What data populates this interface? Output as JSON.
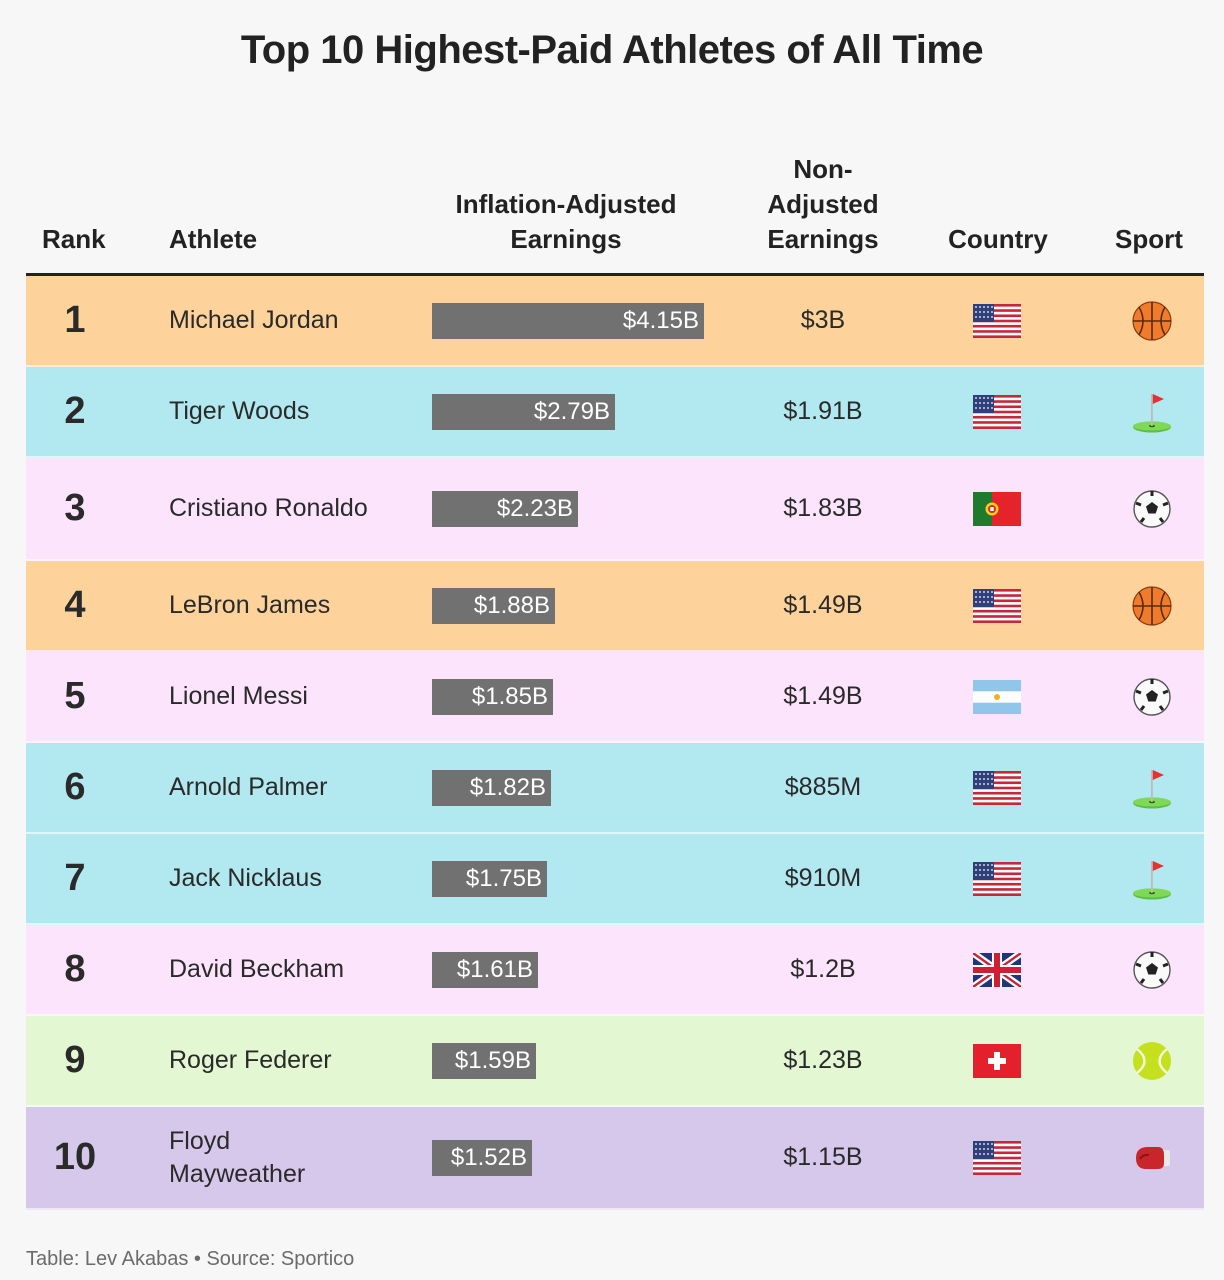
{
  "title": "Top 10 Highest-Paid Athletes of All Time",
  "headers": {
    "rank": "Rank",
    "athlete": "Athlete",
    "inflation_line1": "Inflation-Adjusted",
    "inflation_line2": "Earnings",
    "nonadj_line1": "Non-",
    "nonadj_line2": "Adjusted",
    "nonadj_line3": "Earnings",
    "country": "Country",
    "sport": "Sport"
  },
  "colors": {
    "basketball": "#fdd39b",
    "golf": "#b2e8ef",
    "soccer": "#fde4fd",
    "tennis": "#e2f7d2",
    "boxing": "#d6c8ea",
    "bar": "#717171"
  },
  "chart_data": {
    "type": "table",
    "max_value": 4.15,
    "rows": [
      {
        "rank": "1",
        "athlete": "Michael Jordan",
        "inflation_label": "$4.15B",
        "inflation_value": 4.15,
        "nonadj": "$3B",
        "country": "us-flag-icon",
        "sport": "basketball-icon",
        "sport_key": "basketball"
      },
      {
        "rank": "2",
        "athlete": "Tiger Woods",
        "inflation_label": "$2.79B",
        "inflation_value": 2.79,
        "nonadj": "$1.91B",
        "country": "us-flag-icon",
        "sport": "golf-flag-icon",
        "sport_key": "golf"
      },
      {
        "rank": "3",
        "athlete": "Cristiano Ronaldo",
        "inflation_label": "$2.23B",
        "inflation_value": 2.23,
        "nonadj": "$1.83B",
        "country": "portugal-flag-icon",
        "sport": "soccer-ball-icon",
        "sport_key": "soccer"
      },
      {
        "rank": "4",
        "athlete": "LeBron James",
        "inflation_label": "$1.88B",
        "inflation_value": 1.88,
        "nonadj": "$1.49B",
        "country": "us-flag-icon",
        "sport": "basketball-icon",
        "sport_key": "basketball"
      },
      {
        "rank": "5",
        "athlete": "Lionel Messi",
        "inflation_label": "$1.85B",
        "inflation_value": 1.85,
        "nonadj": "$1.49B",
        "country": "argentina-flag-icon",
        "sport": "soccer-ball-icon",
        "sport_key": "soccer"
      },
      {
        "rank": "6",
        "athlete": "Arnold Palmer",
        "inflation_label": "$1.82B",
        "inflation_value": 1.82,
        "nonadj": "$885M",
        "country": "us-flag-icon",
        "sport": "golf-flag-icon",
        "sport_key": "golf"
      },
      {
        "rank": "7",
        "athlete": "Jack Nicklaus",
        "inflation_label": "$1.75B",
        "inflation_value": 1.75,
        "nonadj": "$910M",
        "country": "us-flag-icon",
        "sport": "golf-flag-icon",
        "sport_key": "golf"
      },
      {
        "rank": "8",
        "athlete": "David Beckham",
        "inflation_label": "$1.61B",
        "inflation_value": 1.61,
        "nonadj": "$1.2B",
        "country": "uk-flag-icon",
        "sport": "soccer-ball-icon",
        "sport_key": "soccer"
      },
      {
        "rank": "9",
        "athlete": "Roger Federer",
        "inflation_label": "$1.59B",
        "inflation_value": 1.59,
        "nonadj": "$1.23B",
        "country": "switzerland-flag-icon",
        "sport": "tennis-ball-icon",
        "sport_key": "tennis"
      },
      {
        "rank": "10",
        "athlete": "Floyd Mayweather",
        "inflation_label": "$1.52B",
        "inflation_value": 1.52,
        "nonadj": "$1.15B",
        "country": "us-flag-icon",
        "sport": "boxing-glove-icon",
        "sport_key": "boxing"
      }
    ]
  },
  "footer": "Table: Lev Akabas • Source: Sportico"
}
